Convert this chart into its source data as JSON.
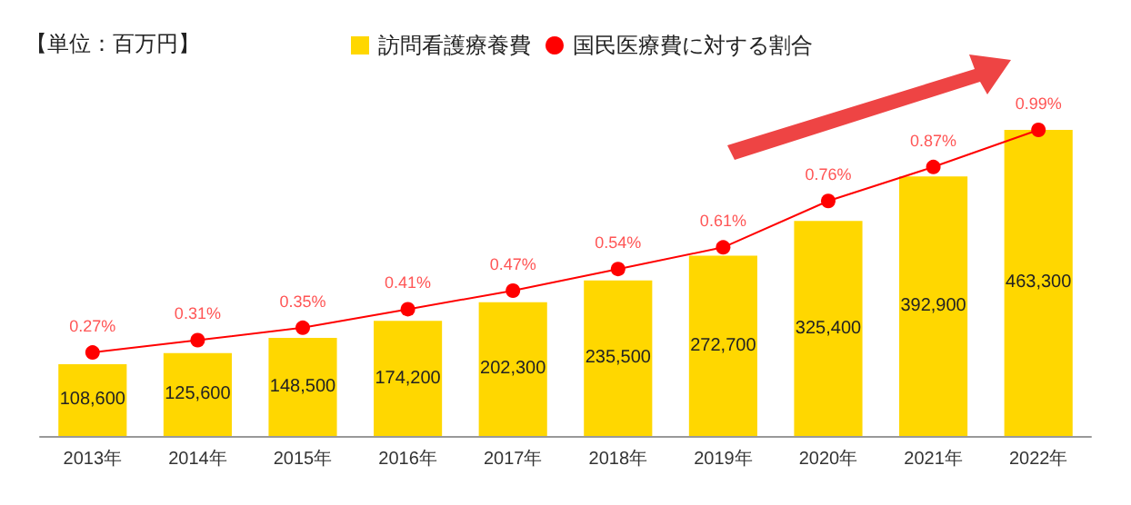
{
  "chart_data": {
    "type": "bar",
    "ylabel": "【単位：百万円】",
    "categories": [
      "2013年",
      "2014年",
      "2015年",
      "2016年",
      "2017年",
      "2018年",
      "2019年",
      "2020年",
      "2021年",
      "2022年"
    ],
    "series": [
      {
        "name": "訪問看護療養費",
        "color": "#ffd700",
        "values": [
          108600,
          125600,
          148500,
          174200,
          202300,
          235500,
          272700,
          325400,
          392900,
          463300
        ],
        "value_labels": [
          "108,600",
          "125,600",
          "148,500",
          "174,200",
          "202,300",
          "235,500",
          "272,700",
          "325,400",
          "392,900",
          "463,300"
        ]
      },
      {
        "name": "国民医療費に対する割合",
        "type": "line",
        "axis": "y2",
        "color": "#ff0000",
        "marker": "circle",
        "values": [
          0.27,
          0.31,
          0.35,
          0.41,
          0.47,
          0.54,
          0.61,
          0.76,
          0.87,
          0.99
        ],
        "value_labels": [
          "0.27%",
          "0.31%",
          "0.35%",
          "0.41%",
          "0.47%",
          "0.54%",
          "0.61%",
          "0.76%",
          "0.87%",
          "0.99%"
        ]
      }
    ],
    "legend": "top",
    "tick_labels": "x",
    "grid": false
  }
}
